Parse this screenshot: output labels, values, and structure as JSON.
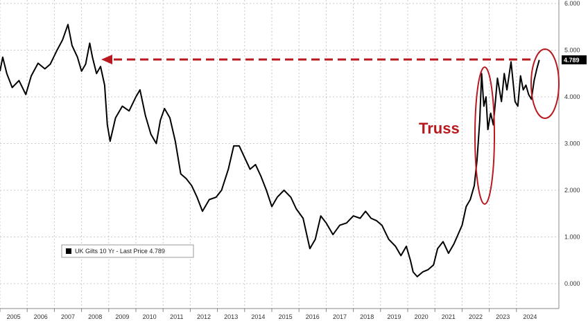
{
  "chart_data": {
    "type": "line",
    "title": "",
    "xlabel": "",
    "ylabel": "",
    "xlim": [
      2005,
      2025.2
    ],
    "ylim": [
      -0.4,
      6.0
    ],
    "grid": true,
    "legend_position": "bottom-left",
    "x_ticks": [
      "2005",
      "2006",
      "2007",
      "2008",
      "2009",
      "2010",
      "2011",
      "2012",
      "2013",
      "2014",
      "2015",
      "2016",
      "2017",
      "2018",
      "2019",
      "2020",
      "2021",
      "2022",
      "2023",
      "2024"
    ],
    "y_ticks": [
      "0.000",
      "1.000",
      "2.000",
      "3.000",
      "4.000",
      "5.000",
      "6.000"
    ],
    "series": [
      {
        "name": "UK Gilts 10 Yr - Last Price",
        "color": "#000000",
        "x": [
          2005.0,
          2005.1,
          2005.25,
          2005.45,
          2005.7,
          2005.95,
          2006.15,
          2006.4,
          2006.65,
          2006.85,
          2007.1,
          2007.3,
          2007.5,
          2007.65,
          2007.85,
          2008.0,
          2008.15,
          2008.3,
          2008.4,
          2008.55,
          2008.7,
          2008.85,
          2008.95,
          2009.05,
          2009.25,
          2009.5,
          2009.75,
          2010.0,
          2010.15,
          2010.35,
          2010.55,
          2010.75,
          2010.9,
          2011.05,
          2011.25,
          2011.45,
          2011.65,
          2011.85,
          2012.05,
          2012.25,
          2012.45,
          2012.7,
          2012.95,
          2013.15,
          2013.4,
          2013.6,
          2013.8,
          2014.0,
          2014.2,
          2014.4,
          2014.6,
          2014.8,
          2015.0,
          2015.2,
          2015.45,
          2015.7,
          2015.9,
          2016.15,
          2016.4,
          2016.6,
          2016.8,
          2017.0,
          2017.25,
          2017.5,
          2017.75,
          2018.0,
          2018.25,
          2018.45,
          2018.65,
          2018.85,
          2019.05,
          2019.3,
          2019.55,
          2019.75,
          2019.95,
          2020.1,
          2020.2,
          2020.35,
          2020.55,
          2020.75,
          2020.95,
          2021.1,
          2021.3,
          2021.5,
          2021.7,
          2021.85,
          2022.0,
          2022.15,
          2022.3,
          2022.45,
          2022.55,
          2022.65,
          2022.72,
          2022.8,
          2022.88,
          2022.95,
          2023.05,
          2023.15,
          2023.3,
          2023.45,
          2023.55,
          2023.65,
          2023.8,
          2023.95,
          2024.05,
          2024.15,
          2024.25,
          2024.35,
          2024.45,
          2024.55,
          2024.65,
          2024.75,
          2024.84
        ],
        "values": [
          4.55,
          4.85,
          4.5,
          4.2,
          4.35,
          4.05,
          4.45,
          4.72,
          4.6,
          4.7,
          5.0,
          5.22,
          5.55,
          5.1,
          4.85,
          4.55,
          4.7,
          5.15,
          4.85,
          4.5,
          4.65,
          4.25,
          3.4,
          3.05,
          3.55,
          3.8,
          3.7,
          4.0,
          4.15,
          3.6,
          3.2,
          3.0,
          3.5,
          3.75,
          3.55,
          3.05,
          2.35,
          2.25,
          2.1,
          1.85,
          1.55,
          1.8,
          1.85,
          2.0,
          2.45,
          2.95,
          2.95,
          2.7,
          2.45,
          2.55,
          2.3,
          2.0,
          1.65,
          1.85,
          2.0,
          1.85,
          1.6,
          1.4,
          0.75,
          0.95,
          1.45,
          1.3,
          1.05,
          1.25,
          1.3,
          1.45,
          1.4,
          1.55,
          1.4,
          1.35,
          1.25,
          0.95,
          0.8,
          0.6,
          0.8,
          0.5,
          0.25,
          0.15,
          0.25,
          0.3,
          0.4,
          0.75,
          0.9,
          0.65,
          0.85,
          1.05,
          1.25,
          1.65,
          1.8,
          2.1,
          2.65,
          3.5,
          4.5,
          3.8,
          4.0,
          3.3,
          3.65,
          3.4,
          4.4,
          3.9,
          4.5,
          4.15,
          4.75,
          3.9,
          3.8,
          4.45,
          4.15,
          4.25,
          4.05,
          3.95,
          4.35,
          4.6,
          4.79
        ]
      }
    ],
    "legend": {
      "label": "UK Gilts 10 Yr - Last Price 4.789"
    },
    "last_value_label": "4.789",
    "annotations": [
      {
        "text": "Truss",
        "color": "#b8191f"
      }
    ],
    "colors": {
      "annotation_red": "#b8191f",
      "line": "#000000"
    }
  }
}
